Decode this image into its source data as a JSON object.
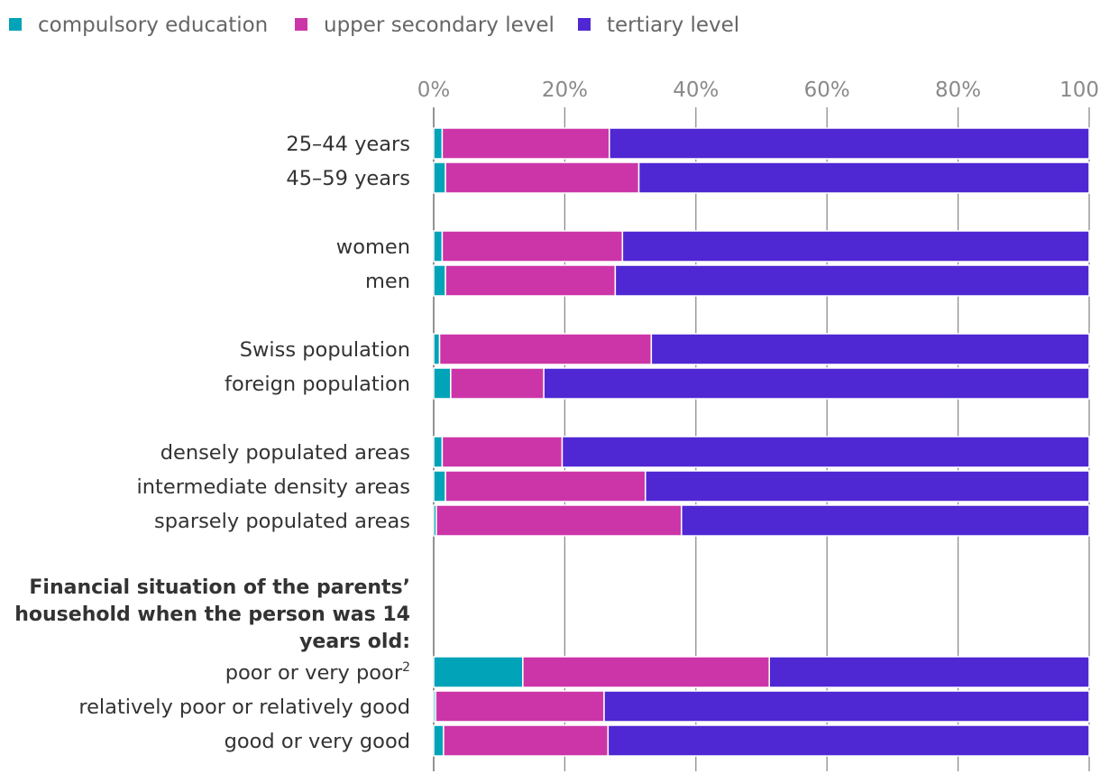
{
  "chart_data": {
    "type": "bar",
    "orientation": "horizontal",
    "stacked": true,
    "title": "",
    "xlabel": "",
    "ylabel": "",
    "xlim": [
      0,
      100
    ],
    "x_ticks": [
      "0%",
      "20%",
      "40%",
      "60%",
      "80%",
      "100%"
    ],
    "x_tick_values": [
      0,
      20,
      40,
      60,
      80,
      100
    ],
    "grid": true,
    "legend_position": "top-left",
    "colors": {
      "compulsory": "#00a3b8",
      "upper_secondary": "#cc35a8",
      "tertiary": "#4f27d3",
      "grid": "#8c8c8c",
      "axis": "#777777"
    },
    "series": [
      {
        "key": "compulsory",
        "name": "compulsory education"
      },
      {
        "key": "upper_secondary",
        "name": "upper secondary level"
      },
      {
        "key": "tertiary",
        "name": "tertiary level"
      }
    ],
    "section_heading": "Financial situation of the parents’ household when the person was 14 years old:",
    "section_heading_lines": [
      "Financial situation of the parents’",
      "household when the person was 14",
      "years old:"
    ],
    "categories": [
      {
        "label": "25–44 years",
        "values": [
          1.3,
          25.5,
          73.2
        ]
      },
      {
        "label": "45–59 years",
        "values": [
          1.8,
          29.5,
          68.7
        ]
      },
      {
        "label": "women",
        "values": [
          1.3,
          27.5,
          71.2
        ]
      },
      {
        "label": "men",
        "values": [
          1.8,
          25.9,
          72.3
        ]
      },
      {
        "label": "Swiss population",
        "values": [
          0.9,
          32.3,
          66.8
        ]
      },
      {
        "label": "foreign population",
        "values": [
          2.6,
          14.2,
          83.2
        ]
      },
      {
        "label": "densely populated areas",
        "values": [
          1.3,
          18.3,
          80.4
        ]
      },
      {
        "label": "intermediate density areas",
        "values": [
          1.8,
          30.5,
          67.7
        ]
      },
      {
        "label": "sparsely populated areas",
        "values": [
          0.4,
          37.4,
          62.2
        ]
      },
      {
        "label": "poor or very poor",
        "superscript": "2",
        "values": [
          13.6,
          37.6,
          48.8
        ]
      },
      {
        "label": "relatively poor or relatively good",
        "values": [
          0.3,
          25.7,
          74.0
        ]
      },
      {
        "label": "good or very good",
        "values": [
          1.5,
          25.1,
          73.4
        ]
      }
    ]
  }
}
